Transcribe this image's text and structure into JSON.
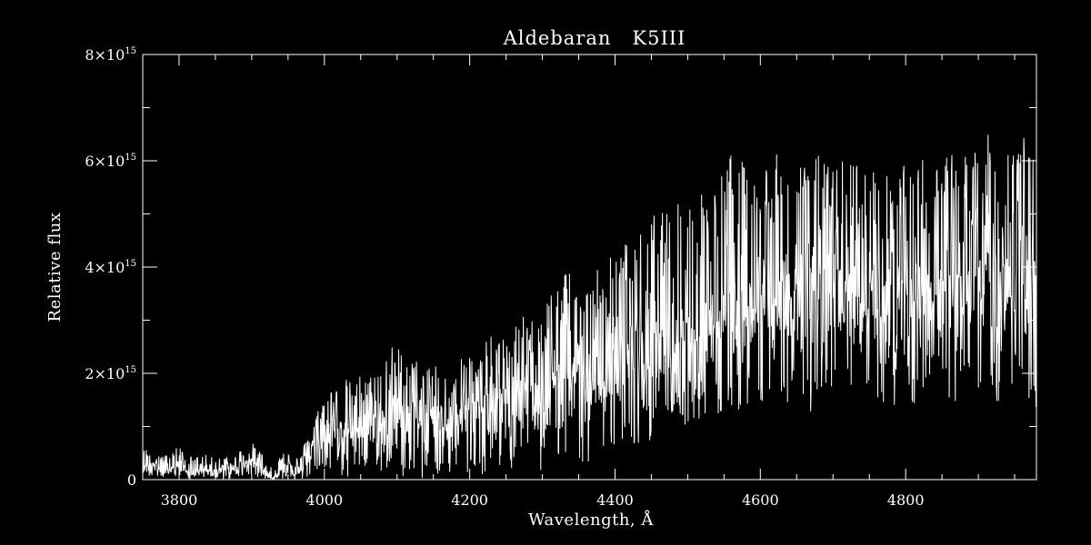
{
  "chart_data": {
    "type": "line",
    "title": "Aldebaran   K5III",
    "xlabel": "Wavelength, Å",
    "ylabel": "Relative flux",
    "xlim": [
      3750,
      4980
    ],
    "ylim": [
      0,
      8000000000000000.0
    ],
    "x_ticks": [
      {
        "value": 3800,
        "label": "3800"
      },
      {
        "value": 4000,
        "label": "4000"
      },
      {
        "value": 4200,
        "label": "4200"
      },
      {
        "value": 4400,
        "label": "4400"
      },
      {
        "value": 4600,
        "label": "4600"
      },
      {
        "value": 4800,
        "label": "4800"
      }
    ],
    "y_ticks": [
      {
        "value": 0,
        "mantissa": "0",
        "exponent": ""
      },
      {
        "value": 2000000000000000.0,
        "mantissa": "2×10",
        "exponent": "15"
      },
      {
        "value": 4000000000000000.0,
        "mantissa": "4×10",
        "exponent": "15"
      },
      {
        "value": 6000000000000000.0,
        "mantissa": "6×10",
        "exponent": "15"
      },
      {
        "value": 8000000000000000.0,
        "mantissa": "8×10",
        "exponent": "15"
      }
    ],
    "x_minor_step": 50,
    "y_minor_step": 1000000000000000.0,
    "grid": false,
    "line_color": "#ffffff",
    "background_color": "#000000",
    "series": [
      {
        "x": [
          3750,
          3760,
          3770,
          3780,
          3790,
          3800,
          3810,
          3820,
          3830,
          3840,
          3850,
          3860,
          3870,
          3880,
          3890,
          3900,
          3910,
          3920,
          3930,
          3940,
          3950,
          3960,
          3970,
          3980,
          3990,
          4000,
          4010,
          4020,
          4030,
          4040,
          4050,
          4060,
          4070,
          4080,
          4090,
          4100,
          4110,
          4120,
          4130,
          4140,
          4150,
          4160,
          4170,
          4180,
          4190,
          4200,
          4210,
          4220,
          4230,
          4240,
          4250,
          4260,
          4270,
          4280,
          4290,
          4300,
          4310,
          4320,
          4330,
          4340,
          4350,
          4360,
          4370,
          4380,
          4390,
          4400,
          4410,
          4420,
          4430,
          4440,
          4450,
          4460,
          4470,
          4480,
          4490,
          4500,
          4510,
          4520,
          4530,
          4540,
          4550,
          4560,
          4570,
          4580,
          4590,
          4600,
          4610,
          4620,
          4630,
          4640,
          4650,
          4660,
          4670,
          4680,
          4690,
          4700,
          4710,
          4720,
          4730,
          4740,
          4750,
          4760,
          4770,
          4780,
          4790,
          4800,
          4810,
          4820,
          4830,
          4840,
          4850,
          4860,
          4870,
          4880,
          4890,
          4900,
          4910,
          4920,
          4930,
          4940,
          4950,
          4960,
          4970,
          4980
        ],
        "y_high": [
          550000000000000.0,
          700000000000000.0,
          600000000000000.0,
          450000000000000.0,
          600000000000000.0,
          650000000000000.0,
          500000000000000.0,
          400000000000000.0,
          500000000000000.0,
          450000000000000.0,
          400000000000000.0,
          450000000000000.0,
          500000000000000.0,
          550000000000000.0,
          600000000000000.0,
          700000000000000.0,
          600000000000000.0,
          350000000000000.0,
          300000000000000.0,
          500000000000000.0,
          750000000000000.0,
          400000000000000.0,
          600000000000000.0,
          1000000000000000.0,
          1300000000000000.0,
          1600000000000000.0,
          1800000000000000.0,
          1700000000000000.0,
          1900000000000000.0,
          1800000000000000.0,
          2000000000000000.0,
          1900000000000000.0,
          2100000000000000.0,
          2200000000000000.0,
          2500000000000000.0,
          2600000000000000.0,
          2300000000000000.0,
          2400000000000000.0,
          2200000000000000.0,
          2000000000000000.0,
          2300000000000000.0,
          2200000000000000.0,
          2100000000000000.0,
          2300000000000000.0,
          2400000000000000.0,
          2500000000000000.0,
          2100000000000000.0,
          2600000000000000.0,
          2700000000000000.0,
          2800000000000000.0,
          2600000000000000.0,
          2900000000000000.0,
          3000000000000000.0,
          3200000000000000.0,
          3300000000000000.0,
          3200000000000000.0,
          3600000000000000.0,
          3800000000000000.0,
          4000000000000000.0,
          4300000000000000.0,
          3900000000000000.0,
          3600000000000000.0,
          4100000000000000.0,
          4000000000000000.0,
          4200000000000000.0,
          4300000000000000.0,
          4400000000000000.0,
          4600000000000000.0,
          4700000000000000.0,
          4600000000000000.0,
          5000000000000000.0,
          5100000000000000.0,
          5000000000000000.0,
          5400000000000000.0,
          5500000000000000.0,
          5500000000000000.0,
          5200000000000000.0,
          5600000000000000.0,
          5700000000000000.0,
          5600000000000000.0,
          5900000000000000.0,
          6300000000000000.0,
          6100000000000000.0,
          5900000000000000.0,
          6000000000000000.0,
          6600000000000000.0,
          6400000000000000.0,
          6200000000000000.0,
          5900000000000000.0,
          6000000000000000.0,
          6100000000000000.0,
          6000000000000000.0,
          5800000000000000.0,
          6200000000000000.0,
          6000000000000000.0,
          5900000000000000.0,
          6000000000000000.0,
          6200000000000000.0,
          6100000000000000.0,
          5800000000000000.0,
          6000000000000000.0,
          5900000000000000.0,
          5800000000000000.0,
          5700000000000000.0,
          6000000000000000.0,
          5900000000000000.0,
          5800000000000000.0,
          6100000000000000.0,
          6200000000000000.0,
          6000000000000000.0,
          6300000000000000.0,
          6200000000000000.0,
          6100000000000000.0,
          6400000000000000.0,
          6000000000000000.0,
          6500000000000000.0,
          6600000000000000.0,
          6300000000000000.0,
          6400000000000000.0,
          6500000000000000.0,
          6900000000000000.0,
          6600000000000000.0,
          6200000000000000.0,
          6000000000000000.0
        ],
        "y_mid": [
          250000000000000.0,
          350000000000000.0,
          300000000000000.0,
          200000000000000.0,
          250000000000000.0,
          300000000000000.0,
          200000000000000.0,
          150000000000000.0,
          200000000000000.0,
          250000000000000.0,
          200000000000000.0,
          200000000000000.0,
          250000000000000.0,
          300000000000000.0,
          350000000000000.0,
          400000000000000.0,
          300000000000000.0,
          100000000000000.0,
          50000000000000.0,
          200000000000000.0,
          450000000000000.0,
          100000000000000.0,
          250000000000000.0,
          600000000000000.0,
          850000000000000.0,
          1000000000000000.0,
          1100000000000000.0,
          1100000000000000.0,
          1200000000000000.0,
          1150000000000000.0,
          1250000000000000.0,
          1200000000000000.0,
          1300000000000000.0,
          1350000000000000.0,
          1400000000000000.0,
          1500000000000000.0,
          1350000000000000.0,
          1450000000000000.0,
          1350000000000000.0,
          1300000000000000.0,
          1450000000000000.0,
          1400000000000000.0,
          1350000000000000.0,
          1450000000000000.0,
          1550000000000000.0,
          1600000000000000.0,
          1400000000000000.0,
          1600000000000000.0,
          1650000000000000.0,
          1750000000000000.0,
          1700000000000000.0,
          1800000000000000.0,
          1900000000000000.0,
          2000000000000000.0,
          2050000000000000.0,
          2000000000000000.0,
          2200000000000000.0,
          2300000000000000.0,
          2450000000000000.0,
          2600000000000000.0,
          2400000000000000.0,
          2300000000000000.0,
          2500000000000000.0,
          2500000000000000.0,
          2600000000000000.0,
          2700000000000000.0,
          2800000000000000.0,
          2900000000000000.0,
          3000000000000000.0,
          2900000000000000.0,
          3100000000000000.0,
          3200000000000000.0,
          3100000000000000.0,
          3350000000000000.0,
          3400000000000000.0,
          3200000000000000.0,
          2900000000000000.0,
          3400000000000000.0,
          3500000000000000.0,
          3500000000000000.0,
          3700000000000000.0,
          3900000000000000.0,
          3800000000000000.0,
          3700000000000000.0,
          3800000000000000.0,
          4000000000000000.0,
          4000000000000000.0,
          3900000000000000.0,
          3800000000000000.0,
          3900000000000000.0,
          4000000000000000.0,
          3950000000000000.0,
          3850000000000000.0,
          4050000000000000.0,
          4000000000000000.0,
          3900000000000000.0,
          4000000000000000.0,
          4100000000000000.0,
          4050000000000000.0,
          3900000000000000.0,
          4000000000000000.0,
          3950000000000000.0,
          3900000000000000.0,
          3800000000000000.0,
          4000000000000000.0,
          3950000000000000.0,
          3900000000000000.0,
          4050000000000000.0,
          4100000000000000.0,
          4000000000000000.0,
          4150000000000000.0,
          4100000000000000.0,
          4050000000000000.0,
          4200000000000000.0,
          4000000000000000.0,
          4250000000000000.0,
          4300000000000000.0,
          4150000000000000.0,
          4200000000000000.0,
          4250000000000000.0,
          4400000000000000.0,
          4300000000000000.0,
          4100000000000000.0,
          4000000000000000.0
        ],
        "y_low": [
          0.0,
          50000000000000.0,
          0.0,
          0.0,
          0.0,
          50000000000000.0,
          0.0,
          0.0,
          0.0,
          0.0,
          0.0,
          0.0,
          0.0,
          50000000000000.0,
          50000000000000.0,
          100000000000000.0,
          0.0,
          0.0,
          0.0,
          0.0,
          50000000000000.0,
          0.0,
          0.0,
          50000000000000.0,
          100000000000000.0,
          150000000000000.0,
          50000000000000.0,
          0.0,
          0.0,
          0.0,
          100000000000000.0,
          50000000000000.0,
          100000000000000.0,
          150000000000000.0,
          200000000000000.0,
          100000000000000.0,
          50000000000000.0,
          100000000000000.0,
          0.0,
          0.0,
          100000000000000.0,
          50000000000000.0,
          0.0,
          50000000000000.0,
          100000000000000.0,
          150000000000000.0,
          0.0,
          100000000000000.0,
          50000000000000.0,
          200000000000000.0,
          100000000000000.0,
          150000000000000.0,
          200000000000000.0,
          300000000000000.0,
          250000000000000.0,
          100000000000000.0,
          300000000000000.0,
          200000000000000.0,
          400000000000000.0,
          500000000000000.0,
          300000000000000.0,
          200000000000000.0,
          400000000000000.0,
          350000000000000.0,
          500000000000000.0,
          500000000000000.0,
          600000000000000.0,
          700000000000000.0,
          600000000000000.0,
          500000000000000.0,
          800000000000000.0,
          700000000000000.0,
          900000000000000.0,
          1000000000000000.0,
          1100000000000000.0,
          900000000000000.0,
          600000000000000.0,
          1000000000000000.0,
          1200000000000000.0,
          1100000000000000.0,
          1300000000000000.0,
          1400000000000000.0,
          1300000000000000.0,
          1200000000000000.0,
          1400000000000000.0,
          1500000000000000.0,
          1400000000000000.0,
          1300000000000000.0,
          1200000000000000.0,
          1400000000000000.0,
          1500000000000000.0,
          1300000000000000.0,
          1200000000000000.0,
          1500000000000000.0,
          1400000000000000.0,
          1300000000000000.0,
          1500000000000000.0,
          1600000000000000.0,
          1500000000000000.0,
          1300000000000000.0,
          1500000000000000.0,
          1400000000000000.0,
          1300000000000000.0,
          1200000000000000.0,
          1500000000000000.0,
          1400000000000000.0,
          1300000000000000.0,
          1600000000000000.0,
          1700000000000000.0,
          1500000000000000.0,
          1600000000000000.0,
          1500000000000000.0,
          1400000000000000.0,
          1700000000000000.0,
          1300000000000000.0,
          1600000000000000.0,
          1800000000000000.0,
          1500000000000000.0,
          1400000000000000.0,
          1600000000000000.0,
          1800000000000000.0,
          1700000000000000.0,
          1400000000000000.0,
          1300000000000000.0
        ]
      }
    ]
  }
}
